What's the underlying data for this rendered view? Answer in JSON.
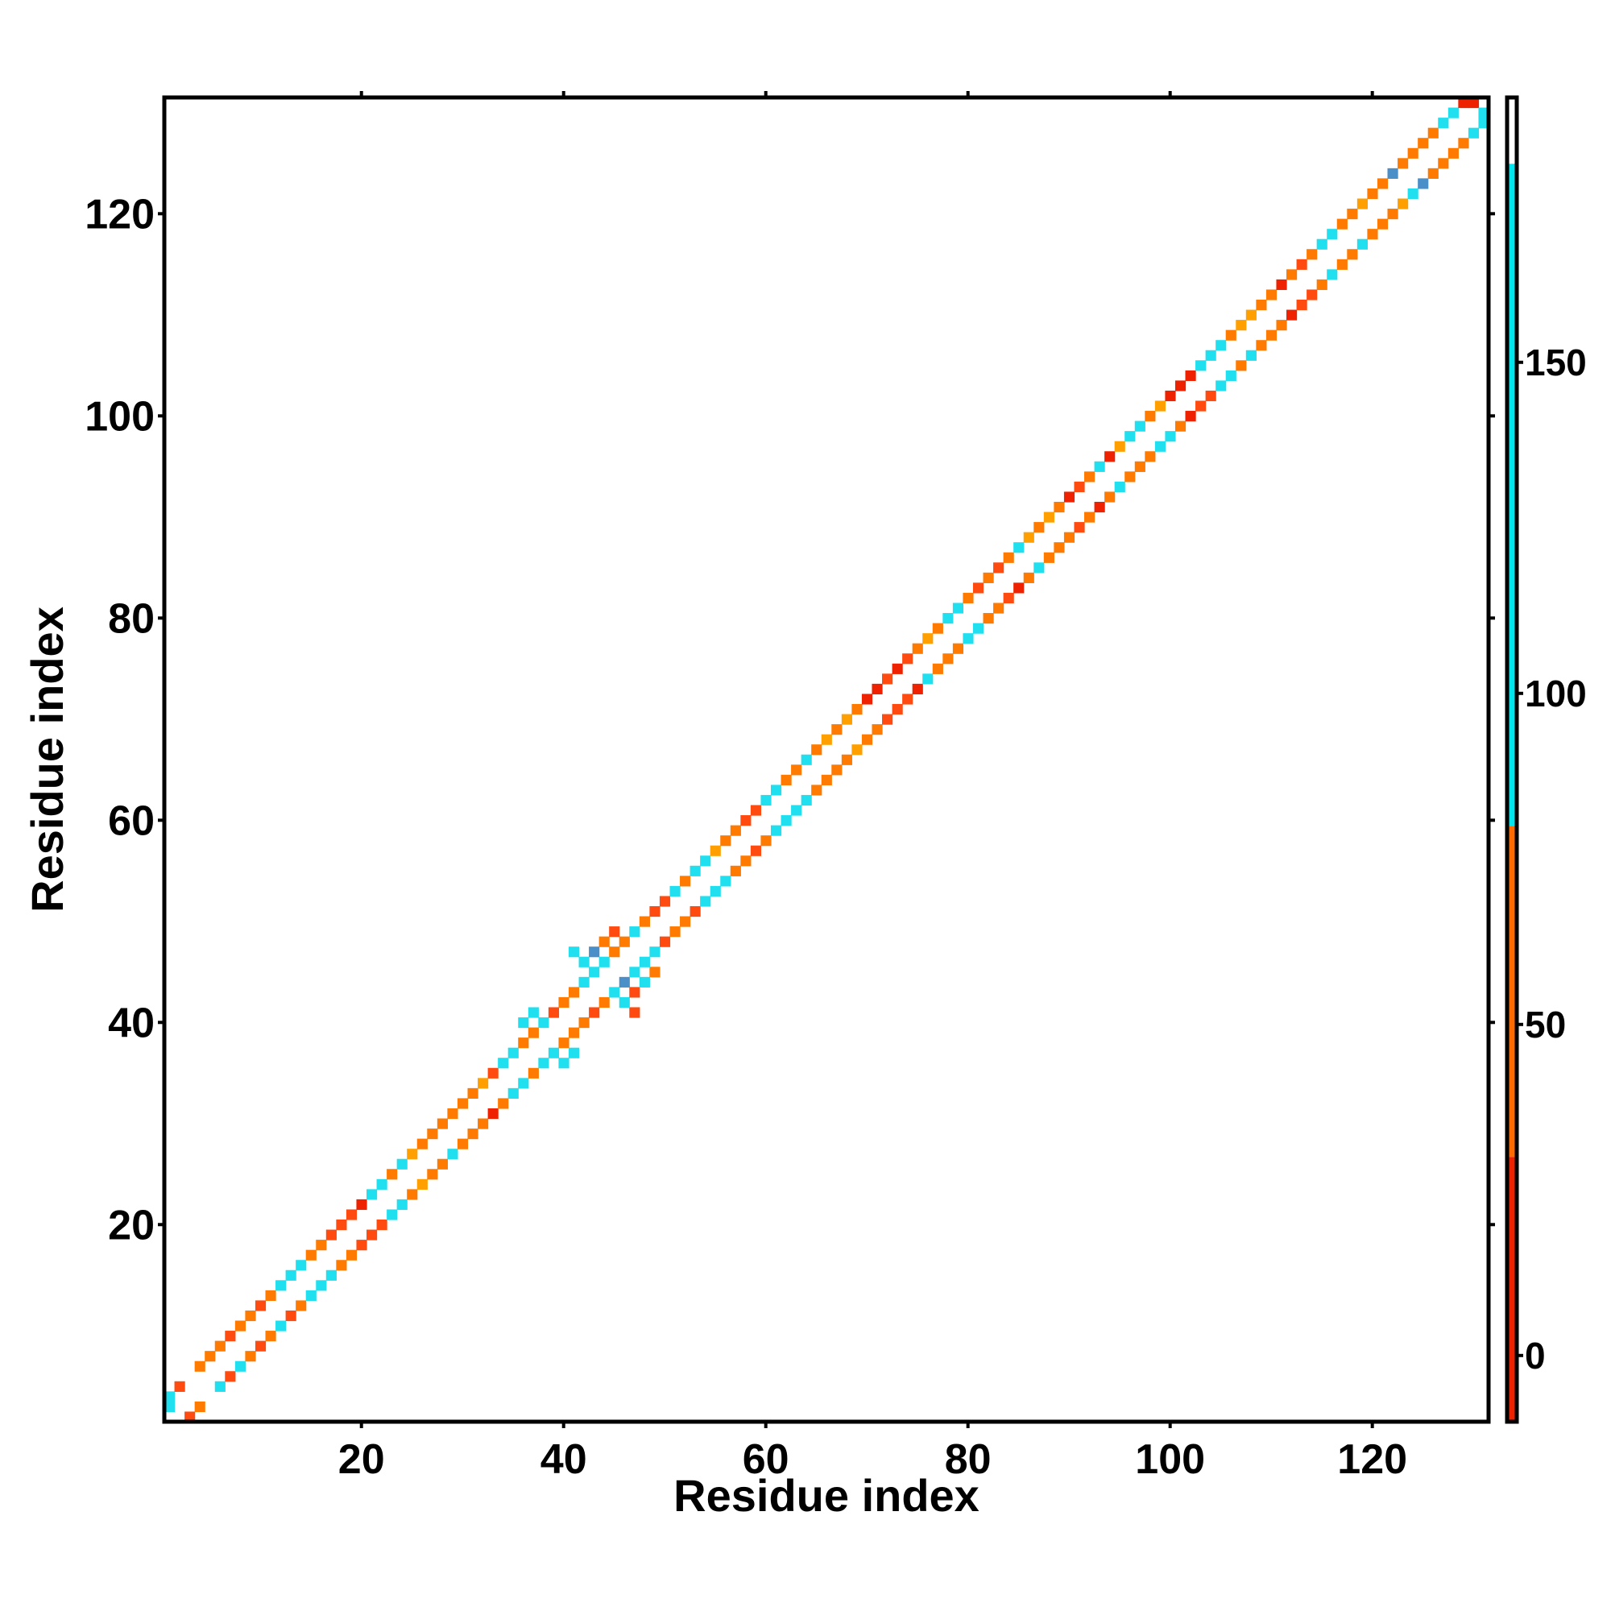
{
  "chart_data": {
    "type": "heatmap",
    "title": "",
    "xlabel": "Residue index",
    "ylabel": "Residue index",
    "xlim": [
      0.5,
      131.5
    ],
    "ylim": [
      0.5,
      131.5
    ],
    "x_ticks": [
      20,
      40,
      60,
      80,
      100,
      120
    ],
    "y_ticks": [
      20,
      40,
      60,
      80,
      100,
      120
    ],
    "x_tick_labels": [
      "20",
      "40",
      "60",
      "80",
      "100",
      "120"
    ],
    "y_tick_labels": [
      "20",
      "40",
      "60",
      "80",
      "100",
      "120"
    ],
    "colorbar": {
      "range": [
        -10,
        190
      ],
      "ticks": [
        0,
        50,
        100,
        150
      ],
      "tick_labels": [
        "0",
        "50",
        "100",
        "150"
      ],
      "bands": [
        {
          "from": -10,
          "to": 30,
          "color": "#ee2200"
        },
        {
          "from": 30,
          "to": 80,
          "color": "#ff6a00"
        },
        {
          "from": 80,
          "to": 180,
          "color": "#00e5ee"
        },
        {
          "from": 180,
          "to": 190,
          "color": "#ffffff"
        }
      ]
    },
    "palette": {
      "red": "#ee2200",
      "orange_red": "#ff4a10",
      "orange": "#ff7a00",
      "light_orange": "#ffa000",
      "cyan": "#20e0f0",
      "steel_blue": "#4a8fc8"
    },
    "cells": [
      [
        1,
        3,
        "cyan"
      ],
      [
        1,
        2,
        "cyan"
      ],
      [
        3,
        1,
        "orange_red"
      ],
      [
        2,
        4,
        "orange_red"
      ],
      [
        4,
        2,
        "orange"
      ],
      [
        4,
        6,
        "orange"
      ],
      [
        6,
        4,
        "cyan"
      ],
      [
        5,
        7,
        "orange"
      ],
      [
        7,
        5,
        "orange_red"
      ],
      [
        6,
        8,
        "orange"
      ],
      [
        8,
        6,
        "cyan"
      ],
      [
        7,
        9,
        "orange_red"
      ],
      [
        9,
        7,
        "orange"
      ],
      [
        8,
        10,
        "orange"
      ],
      [
        10,
        8,
        "orange_red"
      ],
      [
        9,
        11,
        "orange"
      ],
      [
        11,
        9,
        "orange"
      ],
      [
        10,
        12,
        "orange_red"
      ],
      [
        12,
        10,
        "cyan"
      ],
      [
        11,
        13,
        "orange"
      ],
      [
        13,
        11,
        "orange_red"
      ],
      [
        12,
        14,
        "cyan"
      ],
      [
        14,
        12,
        "orange"
      ],
      [
        13,
        15,
        "cyan"
      ],
      [
        15,
        13,
        "cyan"
      ],
      [
        14,
        16,
        "cyan"
      ],
      [
        16,
        14,
        "cyan"
      ],
      [
        15,
        17,
        "orange"
      ],
      [
        17,
        15,
        "cyan"
      ],
      [
        16,
        18,
        "orange"
      ],
      [
        18,
        16,
        "orange"
      ],
      [
        17,
        19,
        "orange_red"
      ],
      [
        19,
        17,
        "orange"
      ],
      [
        18,
        20,
        "orange_red"
      ],
      [
        20,
        18,
        "orange_red"
      ],
      [
        19,
        21,
        "orange_red"
      ],
      [
        21,
        19,
        "orange_red"
      ],
      [
        20,
        22,
        "red"
      ],
      [
        22,
        20,
        "orange_red"
      ],
      [
        21,
        23,
        "cyan"
      ],
      [
        23,
        21,
        "cyan"
      ],
      [
        22,
        24,
        "cyan"
      ],
      [
        24,
        22,
        "cyan"
      ],
      [
        23,
        25,
        "orange"
      ],
      [
        25,
        23,
        "orange"
      ],
      [
        24,
        26,
        "cyan"
      ],
      [
        26,
        24,
        "light_orange"
      ],
      [
        25,
        27,
        "light_orange"
      ],
      [
        27,
        25,
        "orange"
      ],
      [
        26,
        28,
        "orange"
      ],
      [
        28,
        26,
        "orange"
      ],
      [
        27,
        29,
        "orange"
      ],
      [
        29,
        27,
        "cyan"
      ],
      [
        28,
        30,
        "orange"
      ],
      [
        30,
        28,
        "orange"
      ],
      [
        29,
        31,
        "orange"
      ],
      [
        31,
        29,
        "orange"
      ],
      [
        30,
        32,
        "orange"
      ],
      [
        32,
        30,
        "orange"
      ],
      [
        31,
        33,
        "orange"
      ],
      [
        33,
        31,
        "red"
      ],
      [
        32,
        34,
        "light_orange"
      ],
      [
        34,
        32,
        "orange"
      ],
      [
        33,
        35,
        "orange_red"
      ],
      [
        35,
        33,
        "cyan"
      ],
      [
        34,
        36,
        "cyan"
      ],
      [
        36,
        34,
        "cyan"
      ],
      [
        35,
        37,
        "cyan"
      ],
      [
        37,
        35,
        "orange"
      ],
      [
        36,
        38,
        "orange"
      ],
      [
        38,
        36,
        "cyan"
      ],
      [
        36,
        40,
        "cyan"
      ],
      [
        40,
        36,
        "cyan"
      ],
      [
        37,
        41,
        "cyan"
      ],
      [
        41,
        37,
        "cyan"
      ],
      [
        37,
        39,
        "orange"
      ],
      [
        39,
        37,
        "cyan"
      ],
      [
        38,
        40,
        "cyan"
      ],
      [
        40,
        38,
        "orange"
      ],
      [
        39,
        41,
        "orange_red"
      ],
      [
        41,
        39,
        "orange"
      ],
      [
        40,
        42,
        "orange"
      ],
      [
        42,
        40,
        "orange"
      ],
      [
        41,
        43,
        "orange"
      ],
      [
        43,
        41,
        "orange_red"
      ],
      [
        42,
        44,
        "cyan"
      ],
      [
        44,
        42,
        "orange"
      ],
      [
        41,
        47,
        "cyan"
      ],
      [
        47,
        41,
        "orange_red"
      ],
      [
        42,
        46,
        "cyan"
      ],
      [
        46,
        42,
        "cyan"
      ],
      [
        43,
        45,
        "cyan"
      ],
      [
        45,
        43,
        "cyan"
      ],
      [
        43,
        47,
        "steel_blue"
      ],
      [
        47,
        43,
        "orange_red"
      ],
      [
        44,
        46,
        "cyan"
      ],
      [
        46,
        44,
        "steel_blue"
      ],
      [
        45,
        47,
        "orange"
      ],
      [
        47,
        45,
        "cyan"
      ],
      [
        44,
        48,
        "orange"
      ],
      [
        48,
        44,
        "cyan"
      ],
      [
        45,
        49,
        "orange_red"
      ],
      [
        49,
        45,
        "orange"
      ],
      [
        46,
        48,
        "orange"
      ],
      [
        48,
        46,
        "cyan"
      ],
      [
        47,
        49,
        "cyan"
      ],
      [
        49,
        47,
        "cyan"
      ],
      [
        48,
        50,
        "orange"
      ],
      [
        50,
        48,
        "orange_red"
      ],
      [
        49,
        51,
        "orange_red"
      ],
      [
        51,
        49,
        "orange"
      ],
      [
        50,
        52,
        "orange_red"
      ],
      [
        52,
        50,
        "orange"
      ],
      [
        51,
        53,
        "cyan"
      ],
      [
        53,
        51,
        "orange_red"
      ],
      [
        52,
        54,
        "orange"
      ],
      [
        54,
        52,
        "cyan"
      ],
      [
        53,
        55,
        "cyan"
      ],
      [
        55,
        53,
        "cyan"
      ],
      [
        54,
        56,
        "cyan"
      ],
      [
        56,
        54,
        "cyan"
      ],
      [
        55,
        57,
        "light_orange"
      ],
      [
        57,
        55,
        "orange"
      ],
      [
        56,
        58,
        "orange"
      ],
      [
        58,
        56,
        "orange"
      ],
      [
        57,
        59,
        "orange"
      ],
      [
        59,
        57,
        "orange_red"
      ],
      [
        58,
        60,
        "orange_red"
      ],
      [
        60,
        58,
        "orange"
      ],
      [
        59,
        61,
        "orange_red"
      ],
      [
        61,
        59,
        "cyan"
      ],
      [
        60,
        62,
        "cyan"
      ],
      [
        62,
        60,
        "cyan"
      ],
      [
        61,
        63,
        "cyan"
      ],
      [
        63,
        61,
        "cyan"
      ],
      [
        62,
        64,
        "orange"
      ],
      [
        64,
        62,
        "cyan"
      ],
      [
        63,
        65,
        "orange"
      ],
      [
        65,
        63,
        "orange"
      ],
      [
        64,
        66,
        "cyan"
      ],
      [
        66,
        64,
        "orange"
      ],
      [
        65,
        67,
        "orange"
      ],
      [
        67,
        65,
        "orange"
      ],
      [
        66,
        68,
        "light_orange"
      ],
      [
        68,
        66,
        "orange"
      ],
      [
        67,
        69,
        "orange"
      ],
      [
        69,
        67,
        "light_orange"
      ],
      [
        68,
        70,
        "light_orange"
      ],
      [
        70,
        68,
        "orange"
      ],
      [
        69,
        71,
        "orange"
      ],
      [
        71,
        69,
        "orange"
      ],
      [
        70,
        72,
        "red"
      ],
      [
        72,
        70,
        "orange_red"
      ],
      [
        71,
        73,
        "red"
      ],
      [
        73,
        71,
        "orange_red"
      ],
      [
        72,
        74,
        "orange_red"
      ],
      [
        74,
        72,
        "orange_red"
      ],
      [
        73,
        75,
        "red"
      ],
      [
        75,
        73,
        "red"
      ],
      [
        74,
        76,
        "orange_red"
      ],
      [
        76,
        74,
        "cyan"
      ],
      [
        75,
        77,
        "orange"
      ],
      [
        77,
        75,
        "orange"
      ],
      [
        76,
        78,
        "light_orange"
      ],
      [
        78,
        76,
        "orange"
      ],
      [
        77,
        79,
        "orange"
      ],
      [
        79,
        77,
        "orange"
      ],
      [
        78,
        80,
        "cyan"
      ],
      [
        80,
        78,
        "cyan"
      ],
      [
        79,
        81,
        "cyan"
      ],
      [
        81,
        79,
        "cyan"
      ],
      [
        80,
        82,
        "orange"
      ],
      [
        82,
        80,
        "orange"
      ],
      [
        81,
        83,
        "orange_red"
      ],
      [
        83,
        81,
        "orange"
      ],
      [
        82,
        84,
        "orange"
      ],
      [
        84,
        82,
        "orange_red"
      ],
      [
        83,
        85,
        "orange_red"
      ],
      [
        85,
        83,
        "red"
      ],
      [
        84,
        86,
        "orange"
      ],
      [
        86,
        84,
        "orange"
      ],
      [
        85,
        87,
        "cyan"
      ],
      [
        87,
        85,
        "cyan"
      ],
      [
        86,
        88,
        "light_orange"
      ],
      [
        88,
        86,
        "orange"
      ],
      [
        87,
        89,
        "orange"
      ],
      [
        89,
        87,
        "orange"
      ],
      [
        88,
        90,
        "light_orange"
      ],
      [
        90,
        88,
        "orange"
      ],
      [
        89,
        91,
        "orange"
      ],
      [
        91,
        89,
        "orange_red"
      ],
      [
        90,
        92,
        "red"
      ],
      [
        92,
        90,
        "orange"
      ],
      [
        91,
        93,
        "orange_red"
      ],
      [
        93,
        91,
        "red"
      ],
      [
        92,
        94,
        "orange"
      ],
      [
        94,
        92,
        "orange"
      ],
      [
        93,
        95,
        "cyan"
      ],
      [
        95,
        93,
        "cyan"
      ],
      [
        94,
        96,
        "red"
      ],
      [
        96,
        94,
        "orange"
      ],
      [
        95,
        97,
        "light_orange"
      ],
      [
        97,
        95,
        "orange"
      ],
      [
        96,
        98,
        "cyan"
      ],
      [
        98,
        96,
        "orange"
      ],
      [
        97,
        99,
        "cyan"
      ],
      [
        99,
        97,
        "cyan"
      ],
      [
        98,
        100,
        "orange"
      ],
      [
        100,
        98,
        "cyan"
      ],
      [
        99,
        101,
        "light_orange"
      ],
      [
        101,
        99,
        "orange"
      ],
      [
        100,
        102,
        "red"
      ],
      [
        102,
        100,
        "red"
      ],
      [
        101,
        103,
        "red"
      ],
      [
        103,
        101,
        "orange_red"
      ],
      [
        102,
        104,
        "red"
      ],
      [
        104,
        102,
        "orange_red"
      ],
      [
        103,
        105,
        "cyan"
      ],
      [
        105,
        103,
        "cyan"
      ],
      [
        104,
        106,
        "cyan"
      ],
      [
        106,
        104,
        "cyan"
      ],
      [
        105,
        107,
        "cyan"
      ],
      [
        107,
        105,
        "orange"
      ],
      [
        106,
        108,
        "orange"
      ],
      [
        108,
        106,
        "cyan"
      ],
      [
        107,
        109,
        "light_orange"
      ],
      [
        109,
        107,
        "orange"
      ],
      [
        108,
        110,
        "light_orange"
      ],
      [
        110,
        108,
        "orange"
      ],
      [
        109,
        111,
        "orange"
      ],
      [
        111,
        109,
        "orange"
      ],
      [
        110,
        112,
        "orange"
      ],
      [
        112,
        110,
        "red"
      ],
      [
        111,
        113,
        "red"
      ],
      [
        113,
        111,
        "orange_red"
      ],
      [
        112,
        114,
        "orange"
      ],
      [
        114,
        112,
        "orange_red"
      ],
      [
        113,
        115,
        "orange_red"
      ],
      [
        115,
        113,
        "orange"
      ],
      [
        114,
        116,
        "orange"
      ],
      [
        116,
        114,
        "cyan"
      ],
      [
        115,
        117,
        "cyan"
      ],
      [
        117,
        115,
        "orange"
      ],
      [
        116,
        118,
        "cyan"
      ],
      [
        118,
        116,
        "orange"
      ],
      [
        117,
        119,
        "orange"
      ],
      [
        119,
        117,
        "cyan"
      ],
      [
        118,
        120,
        "orange"
      ],
      [
        120,
        118,
        "orange"
      ],
      [
        119,
        121,
        "light_orange"
      ],
      [
        121,
        119,
        "orange"
      ],
      [
        120,
        122,
        "orange"
      ],
      [
        122,
        120,
        "orange"
      ],
      [
        121,
        123,
        "orange"
      ],
      [
        123,
        121,
        "light_orange"
      ],
      [
        122,
        124,
        "steel_blue"
      ],
      [
        124,
        122,
        "cyan"
      ],
      [
        123,
        125,
        "orange"
      ],
      [
        125,
        123,
        "steel_blue"
      ],
      [
        124,
        126,
        "orange"
      ],
      [
        126,
        124,
        "orange"
      ],
      [
        125,
        127,
        "orange"
      ],
      [
        127,
        125,
        "orange"
      ],
      [
        126,
        128,
        "orange"
      ],
      [
        128,
        126,
        "orange"
      ],
      [
        127,
        129,
        "cyan"
      ],
      [
        129,
        127,
        "orange"
      ],
      [
        128,
        130,
        "cyan"
      ],
      [
        130,
        128,
        "cyan"
      ],
      [
        129,
        131,
        "red"
      ],
      [
        131,
        129,
        "cyan"
      ],
      [
        130,
        131,
        "red"
      ],
      [
        131,
        130,
        "cyan"
      ]
    ]
  }
}
